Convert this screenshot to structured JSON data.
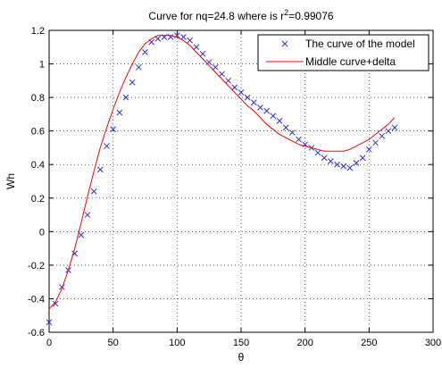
{
  "chart_data": {
    "type": "line",
    "title": {
      "prefix": "Curve for nq=24.8  where is r",
      "superscript": "2",
      "suffix": "=0.99076"
    },
    "xlabel": "θ",
    "ylabel": "Wh",
    "xlim": [
      0,
      300
    ],
    "ylim": [
      -0.6,
      1.2
    ],
    "xticks": [
      0,
      50,
      100,
      150,
      200,
      250,
      300
    ],
    "yticks": [
      -0.6,
      -0.4,
      -0.2,
      0,
      0.2,
      0.4,
      0.6,
      0.8,
      1,
      1.2
    ],
    "xtick_labels": [
      "0",
      "50",
      "100",
      "150",
      "200",
      "250",
      "300"
    ],
    "ytick_labels": [
      "-0.6",
      "-0.4",
      "-0.2",
      "0",
      "0.2",
      "0.4",
      "0.6",
      "0.8",
      "1",
      "1.2"
    ],
    "grid": true,
    "grid_style": "dotted",
    "legend_position": "top-right",
    "series": [
      {
        "name": "The curve of the model",
        "kind": "scatter",
        "marker": "x",
        "color": "#2f2fd0",
        "x": [
          0,
          5,
          10,
          15,
          20,
          25,
          30,
          35,
          40,
          45,
          50,
          55,
          60,
          65,
          70,
          75,
          80,
          85,
          90,
          95,
          100,
          105,
          110,
          115,
          120,
          125,
          130,
          135,
          140,
          145,
          150,
          155,
          160,
          165,
          170,
          175,
          180,
          185,
          190,
          195,
          200,
          205,
          210,
          215,
          220,
          225,
          230,
          235,
          240,
          245,
          250,
          255,
          260,
          265,
          270
        ],
        "y": [
          -0.54,
          -0.43,
          -0.33,
          -0.23,
          -0.13,
          -0.02,
          0.1,
          0.24,
          0.37,
          0.51,
          0.61,
          0.71,
          0.8,
          0.89,
          0.98,
          1.07,
          1.13,
          1.15,
          1.16,
          1.16,
          1.17,
          1.16,
          1.14,
          1.1,
          1.06,
          1.01,
          0.98,
          0.94,
          0.9,
          0.86,
          0.83,
          0.8,
          0.77,
          0.74,
          0.72,
          0.69,
          0.66,
          0.62,
          0.59,
          0.55,
          0.52,
          0.5,
          0.47,
          0.44,
          0.42,
          0.4,
          0.39,
          0.38,
          0.41,
          0.44,
          0.49,
          0.53,
          0.57,
          0.6,
          0.62
        ]
      },
      {
        "name": "Middle curve+delta",
        "kind": "line",
        "color": "#ff0000",
        "x": [
          0,
          5,
          10,
          15,
          20,
          25,
          30,
          35,
          40,
          45,
          50,
          55,
          60,
          65,
          70,
          75,
          80,
          85,
          90,
          95,
          100,
          105,
          110,
          115,
          120,
          125,
          130,
          135,
          140,
          145,
          150,
          155,
          160,
          165,
          170,
          175,
          180,
          185,
          190,
          195,
          200,
          205,
          210,
          215,
          220,
          225,
          230,
          235,
          240,
          245,
          250,
          255,
          260,
          265,
          270
        ],
        "y": [
          -0.46,
          -0.42,
          -0.34,
          -0.23,
          -0.1,
          0.05,
          0.21,
          0.36,
          0.5,
          0.62,
          0.73,
          0.83,
          0.92,
          1.0,
          1.07,
          1.12,
          1.15,
          1.17,
          1.17,
          1.17,
          1.16,
          1.14,
          1.11,
          1.07,
          1.03,
          0.99,
          0.95,
          0.91,
          0.87,
          0.83,
          0.79,
          0.75,
          0.72,
          0.68,
          0.64,
          0.61,
          0.58,
          0.56,
          0.54,
          0.52,
          0.51,
          0.5,
          0.49,
          0.48,
          0.48,
          0.48,
          0.48,
          0.49,
          0.51,
          0.53,
          0.55,
          0.58,
          0.61,
          0.64,
          0.68
        ]
      }
    ]
  }
}
